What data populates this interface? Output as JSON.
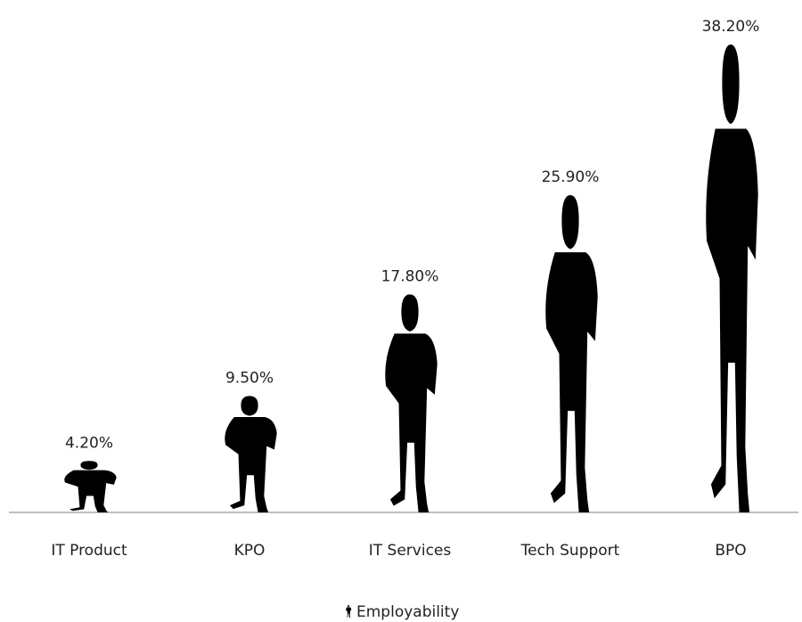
{
  "chart_data": {
    "type": "pictograph",
    "categories": [
      "IT Product",
      "KPO",
      "IT Services",
      "Tech Support",
      "BPO"
    ],
    "series": [
      {
        "name": "Employability",
        "color": "#000000",
        "values": [
          4.2,
          9.5,
          17.8,
          25.9,
          38.2
        ],
        "value_labels": [
          "4.20%",
          "9.50%",
          "17.80%",
          "25.90%",
          "38.20%"
        ]
      }
    ],
    "legend": "bottom"
  }
}
